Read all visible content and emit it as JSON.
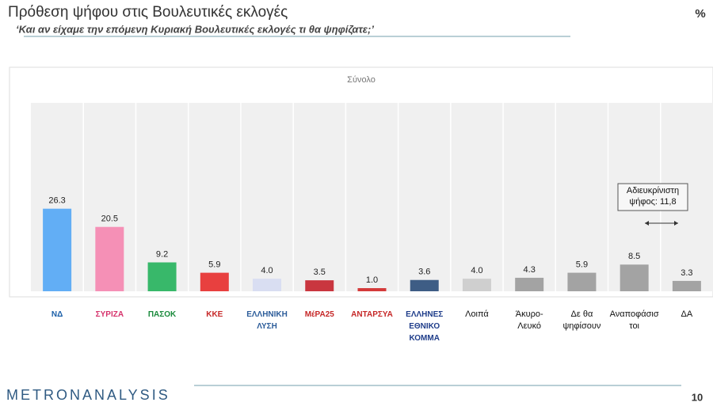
{
  "chart_data": {
    "type": "bar",
    "title": "Πρόθεση ψήφου στις Βουλευτικές εκλογές",
    "subtitle": "‘Και αν είχαμε την επόμενη Κυριακή Βουλευτικές εκλογές τι θα ψηφίζατε;’",
    "unit": "%",
    "panel_title": "Σύνολο",
    "categories": [
      "ΝΔ",
      "ΣΥΡΙΖΑ",
      "ΠΑΣΟΚ",
      "ΚΚΕ",
      "ΕΛΛΗΝΙΚΗ ΛΥΣΗ",
      "ΜέΡΑ25",
      "ΑΝΤΑΡΣΥΑ",
      "ΕΛΛΗΝΕΣ ΕΘΝΙΚΟ ΚΟΜΜΑ",
      "Λοιπά",
      "Άκυρο-Λευκό",
      "Δε θα ψηφίσουν",
      "Αναποφάσιστοι",
      "ΔΑ"
    ],
    "values": [
      26.3,
      20.5,
      9.2,
      5.9,
      4.0,
      3.5,
      1.0,
      3.6,
      4.0,
      4.3,
      5.9,
      8.5,
      3.3
    ],
    "value_labels": [
      "26.3",
      "20.5",
      "9.2",
      "5.9",
      "4.0",
      "3.5",
      "1.0",
      "3.6",
      "4.0",
      "4.3",
      "5.9",
      "8.5",
      "3.3"
    ],
    "colors": [
      "#62aef5",
      "#f590b6",
      "#38b86a",
      "#e8403f",
      "#d9def2",
      "#c9363f",
      "#d43a3a",
      "#3e5d85",
      "#cfcfcf",
      "#a3a3a3",
      "#a3a3a3",
      "#a3a3a3",
      "#a3a3a3"
    ],
    "ylim": [
      0,
      60
    ],
    "annotation": "Αδιευκρίνιστη ψήφος: 11,8",
    "footer": {
      "brand": "METRONANALYSIS",
      "page": "10"
    }
  }
}
